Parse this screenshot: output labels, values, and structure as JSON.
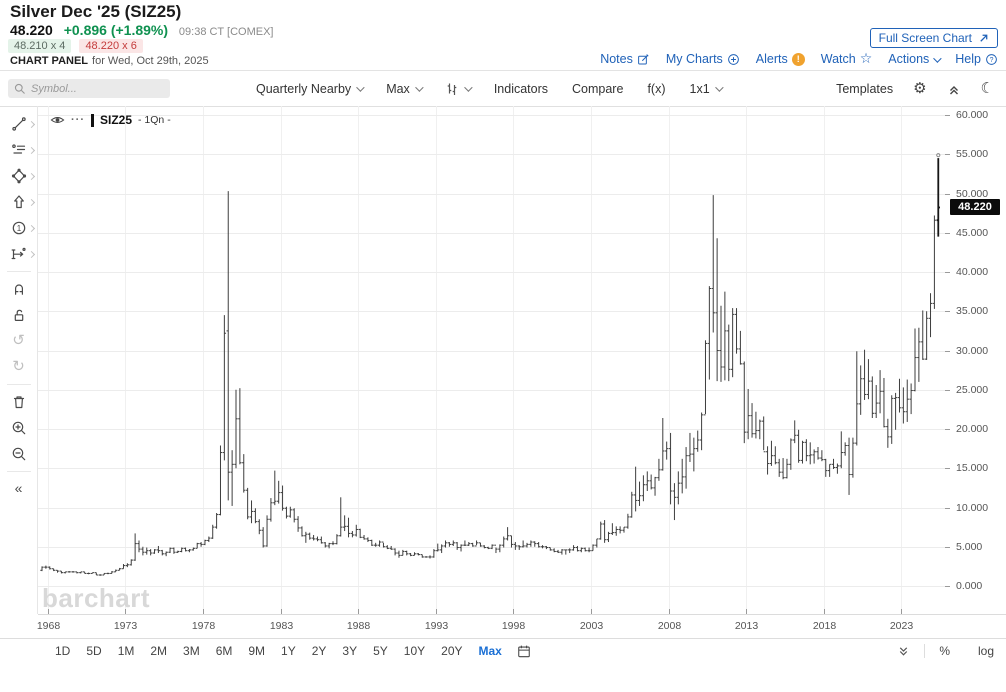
{
  "header": {
    "title": "Silver Dec '25 (SIZ25)",
    "last_price": "48.220",
    "change": "+0.896 (+1.89%)",
    "quote_time": "09:38 CT [COMEX]",
    "bid": "48.210 x 4",
    "ask": "48.220 x 6",
    "panel_label": "CHART PANEL",
    "panel_date": "for Wed, Oct 29th, 2025",
    "full_screen_button": "Full Screen Chart",
    "links": [
      {
        "label": "Notes",
        "icon": "compose-icon"
      },
      {
        "label": "My Charts",
        "icon": "plus-circle-icon"
      },
      {
        "label": "Alerts",
        "icon": "alert-badge-icon"
      },
      {
        "label": "Watch",
        "icon": "star-icon"
      },
      {
        "label": "Actions",
        "icon": "caret-down-icon"
      },
      {
        "label": "Help",
        "icon": "help-circle-icon"
      }
    ]
  },
  "toolbar": {
    "symbol_placeholder": "Symbol...",
    "frequency": "Quarterly Nearby",
    "range": "Max",
    "chart_type_icon": "ohlc-bar-type-icon",
    "indicators": "Indicators",
    "compare": "Compare",
    "fx": "f(x)",
    "grid_layout": "1x1",
    "templates": "Templates"
  },
  "side_tools": [
    {
      "name": "trendline-tool",
      "expand": true
    },
    {
      "name": "annotation-tool",
      "expand": true
    },
    {
      "name": "shapes-tool",
      "expand": true
    },
    {
      "name": "arrow-tool",
      "expand": true
    },
    {
      "name": "number-annotation-tool",
      "expand": true
    },
    {
      "name": "measure-tool",
      "expand": true
    },
    {
      "name": "separator"
    },
    {
      "name": "magnet-tool"
    },
    {
      "name": "lock-tool"
    },
    {
      "name": "undo-button",
      "dim": true
    },
    {
      "name": "redo-button",
      "dim": true
    },
    {
      "name": "separator"
    },
    {
      "name": "delete-drawings-button"
    },
    {
      "name": "zoom-in-button"
    },
    {
      "name": "zoom-out-button"
    },
    {
      "name": "separator"
    },
    {
      "name": "collapse-sidebar-button"
    }
  ],
  "chart": {
    "legend_symbol": "SIZ25",
    "legend_frequency": "- 1Qn -",
    "watermark": "barchart",
    "price_badge": "48.220",
    "badge_value": 48.22,
    "colors": {
      "bar": "#3d3d3d",
      "last_bar": "#161616",
      "grid": "#ececec",
      "axis_text": "#555555",
      "badge_bg": "#0b0b0b",
      "link_blue": "#2062b8",
      "change_green": "#0f9150",
      "ask_red": "#c43b3b",
      "alert_orange": "#f0a22e",
      "active_blue": "#1a6fd4"
    }
  },
  "chart_data": {
    "type": "ohlc-bar",
    "title": "Silver Dec '25 (SIZ25) - Quarterly Nearby - Max range",
    "frequency": "quarterly",
    "x_start_year": 1968,
    "x_ticks": [
      1968,
      1973,
      1978,
      1983,
      1988,
      1993,
      1998,
      2003,
      2008,
      2013,
      2018,
      2023
    ],
    "y_tick_labels": [
      "0.000",
      "5.000",
      "10.000",
      "15.000",
      "20.000",
      "25.000",
      "30.000",
      "35.000",
      "40.000",
      "45.000",
      "50.000",
      "55.000",
      "60.000"
    ],
    "ylim": [
      0,
      61.1
    ],
    "grid": true,
    "legend_position": "top-left",
    "last_close": 48.22,
    "quarters": [
      [
        2.5,
        1.9,
        2.0,
        2.4
      ],
      [
        2.6,
        2.2,
        2.4,
        2.4
      ],
      [
        2.5,
        2.1,
        2.4,
        2.2
      ],
      [
        2.2,
        1.9,
        2.2,
        2.0
      ],
      [
        2.0,
        1.7,
        2.0,
        1.9
      ],
      [
        1.9,
        1.6,
        1.9,
        1.7
      ],
      [
        1.8,
        1.6,
        1.7,
        1.8
      ],
      [
        1.9,
        1.7,
        1.8,
        1.8
      ],
      [
        1.9,
        1.7,
        1.8,
        1.8
      ],
      [
        1.8,
        1.6,
        1.8,
        1.7
      ],
      [
        1.8,
        1.6,
        1.7,
        1.8
      ],
      [
        1.8,
        1.6,
        1.8,
        1.6
      ],
      [
        1.7,
        1.5,
        1.6,
        1.6
      ],
      [
        1.7,
        1.6,
        1.6,
        1.7
      ],
      [
        1.7,
        1.4,
        1.7,
        1.4
      ],
      [
        1.5,
        1.3,
        1.4,
        1.4
      ],
      [
        1.6,
        1.4,
        1.4,
        1.6
      ],
      [
        1.7,
        1.5,
        1.6,
        1.6
      ],
      [
        1.9,
        1.6,
        1.6,
        1.8
      ],
      [
        2.1,
        1.8,
        1.8,
        2.0
      ],
      [
        2.3,
        2.0,
        2.0,
        2.2
      ],
      [
        2.8,
        2.2,
        2.2,
        2.6
      ],
      [
        2.9,
        2.4,
        2.6,
        2.7
      ],
      [
        3.4,
        2.6,
        2.7,
        3.3
      ],
      [
        6.7,
        3.2,
        3.3,
        5.4
      ],
      [
        5.8,
        4.3,
        5.4,
        4.7
      ],
      [
        5.0,
        3.9,
        4.7,
        4.3
      ],
      [
        4.9,
        4.0,
        4.3,
        4.5
      ],
      [
        4.7,
        3.9,
        4.5,
        4.2
      ],
      [
        4.7,
        4.1,
        4.2,
        4.6
      ],
      [
        5.1,
        4.2,
        4.6,
        4.5
      ],
      [
        4.6,
        3.9,
        4.5,
        4.1
      ],
      [
        4.4,
        3.8,
        4.1,
        4.3
      ],
      [
        4.9,
        4.2,
        4.3,
        4.8
      ],
      [
        4.9,
        4.1,
        4.8,
        4.3
      ],
      [
        4.5,
        4.2,
        4.3,
        4.4
      ],
      [
        4.9,
        4.3,
        4.4,
        4.8
      ],
      [
        4.9,
        4.4,
        4.8,
        4.5
      ],
      [
        4.7,
        4.3,
        4.5,
        4.6
      ],
      [
        4.9,
        4.5,
        4.6,
        4.8
      ],
      [
        5.5,
        4.8,
        4.8,
        5.4
      ],
      [
        5.6,
        5.0,
        5.4,
        5.3
      ],
      [
        5.9,
        5.2,
        5.3,
        5.8
      ],
      [
        6.3,
        5.6,
        5.8,
        6.1
      ],
      [
        7.8,
        6.0,
        6.1,
        7.5
      ],
      [
        9.3,
        7.3,
        7.5,
        9.1
      ],
      [
        17.9,
        9.0,
        9.1,
        17.0
      ],
      [
        34.5,
        16.0,
        17.0,
        32.2
      ],
      [
        50.3,
        10.9,
        32.5,
        14.5
      ],
      [
        17.3,
        10.2,
        14.5,
        15.5
      ],
      [
        25.0,
        15.0,
        15.5,
        21.3
      ],
      [
        25.2,
        15.5,
        21.3,
        15.7
      ],
      [
        16.8,
        11.9,
        15.7,
        12.2
      ],
      [
        12.5,
        8.5,
        12.2,
        8.8
      ],
      [
        10.9,
        8.0,
        8.8,
        9.5
      ],
      [
        9.9,
        8.0,
        9.5,
        8.2
      ],
      [
        8.5,
        6.6,
        8.2,
        7.1
      ],
      [
        7.5,
        4.9,
        7.1,
        5.1
      ],
      [
        9.0,
        5.0,
        5.1,
        8.5
      ],
      [
        11.2,
        8.2,
        8.5,
        10.6
      ],
      [
        14.7,
        10.3,
        10.6,
        10.8
      ],
      [
        13.4,
        10.5,
        10.8,
        11.9
      ],
      [
        12.8,
        9.6,
        11.9,
        9.9
      ],
      [
        10.1,
        8.6,
        9.9,
        8.9
      ],
      [
        10.1,
        8.7,
        8.9,
        9.7
      ],
      [
        9.9,
        8.1,
        9.7,
        8.5
      ],
      [
        8.9,
        6.9,
        8.5,
        7.4
      ],
      [
        7.6,
        6.3,
        7.4,
        6.4
      ],
      [
        6.9,
        5.5,
        6.4,
        6.6
      ],
      [
        6.8,
        5.9,
        6.6,
        6.1
      ],
      [
        6.5,
        5.8,
        6.1,
        6.0
      ],
      [
        6.3,
        5.7,
        6.0,
        5.9
      ],
      [
        6.3,
        5.4,
        5.9,
        5.5
      ],
      [
        5.6,
        4.9,
        5.5,
        5.1
      ],
      [
        5.5,
        4.8,
        5.1,
        5.4
      ],
      [
        5.7,
        5.2,
        5.4,
        5.4
      ],
      [
        6.6,
        5.3,
        5.4,
        6.4
      ],
      [
        11.3,
        6.3,
        6.4,
        7.5
      ],
      [
        9.0,
        7.0,
        7.5,
        7.6
      ],
      [
        8.7,
        6.2,
        7.6,
        6.7
      ],
      [
        7.0,
        6.2,
        6.7,
        6.5
      ],
      [
        7.8,
        6.3,
        6.5,
        7.2
      ],
      [
        7.3,
        6.1,
        7.2,
        6.2
      ],
      [
        6.5,
        5.9,
        6.2,
        6.0
      ],
      [
        6.2,
        5.6,
        6.0,
        5.8
      ],
      [
        5.9,
        5.1,
        5.8,
        5.2
      ],
      [
        5.5,
        5.0,
        5.2,
        5.2
      ],
      [
        5.8,
        5.0,
        5.2,
        5.6
      ],
      [
        5.5,
        4.9,
        5.6,
        5.0
      ],
      [
        5.2,
        4.7,
        5.0,
        4.8
      ],
      [
        5.1,
        4.6,
        4.8,
        4.7
      ],
      [
        4.8,
        3.9,
        4.7,
        4.2
      ],
      [
        4.5,
        3.6,
        4.2,
        3.9
      ],
      [
        4.6,
        3.9,
        3.9,
        4.4
      ],
      [
        4.5,
        3.9,
        4.4,
        4.1
      ],
      [
        4.2,
        3.8,
        4.1,
        3.9
      ],
      [
        4.3,
        3.9,
        3.9,
        4.1
      ],
      [
        4.2,
        3.9,
        4.1,
        4.0
      ],
      [
        4.0,
        3.6,
        4.0,
        3.7
      ],
      [
        3.8,
        3.6,
        3.7,
        3.7
      ],
      [
        3.9,
        3.5,
        3.7,
        3.7
      ],
      [
        4.7,
        3.6,
        3.7,
        4.5
      ],
      [
        5.4,
        4.4,
        4.5,
        4.6
      ],
      [
        5.3,
        4.2,
        4.6,
        5.1
      ],
      [
        5.8,
        4.9,
        5.1,
        5.5
      ],
      [
        5.6,
        5.0,
        5.5,
        5.3
      ],
      [
        5.8,
        5.1,
        5.3,
        5.5
      ],
      [
        5.6,
        4.6,
        5.5,
        4.9
      ],
      [
        5.3,
        4.4,
        4.9,
        5.2
      ],
      [
        5.8,
        5.1,
        5.2,
        5.2
      ],
      [
        5.6,
        5.1,
        5.2,
        5.4
      ],
      [
        5.5,
        5.0,
        5.4,
        5.1
      ],
      [
        5.8,
        5.2,
        5.1,
        5.5
      ],
      [
        5.5,
        5.0,
        5.5,
        5.1
      ],
      [
        5.2,
        4.8,
        5.1,
        4.9
      ],
      [
        5.0,
        4.7,
        4.9,
        4.8
      ],
      [
        5.3,
        4.7,
        4.8,
        5.2
      ],
      [
        4.9,
        4.2,
        5.2,
        4.7
      ],
      [
        5.3,
        4.3,
        4.7,
        5.2
      ],
      [
        6.3,
        4.9,
        5.2,
        6.0
      ],
      [
        7.5,
        5.8,
        6.0,
        6.4
      ],
      [
        6.4,
        4.9,
        6.4,
        5.3
      ],
      [
        5.6,
        4.6,
        5.3,
        5.1
      ],
      [
        5.2,
        4.6,
        5.1,
        5.0
      ],
      [
        5.8,
        4.9,
        5.0,
        5.1
      ],
      [
        5.5,
        4.9,
        5.1,
        5.3
      ],
      [
        5.8,
        5.0,
        5.3,
        5.6
      ],
      [
        5.7,
        5.0,
        5.6,
        5.4
      ],
      [
        5.6,
        4.9,
        5.4,
        5.0
      ],
      [
        5.2,
        4.8,
        5.0,
        5.0
      ],
      [
        5.1,
        4.7,
        5.0,
        4.9
      ],
      [
        4.9,
        4.5,
        4.9,
        4.6
      ],
      [
        4.8,
        4.3,
        4.6,
        4.4
      ],
      [
        4.6,
        4.2,
        4.4,
        4.3
      ],
      [
        4.7,
        4.0,
        4.3,
        4.6
      ],
      [
        4.6,
        4.0,
        4.6,
        4.6
      ],
      [
        4.8,
        4.2,
        4.6,
        4.6
      ],
      [
        5.2,
        4.5,
        4.6,
        4.9
      ],
      [
        5.1,
        4.4,
        4.9,
        4.5
      ],
      [
        4.9,
        4.3,
        4.5,
        4.8
      ],
      [
        4.9,
        4.4,
        4.8,
        4.5
      ],
      [
        4.9,
        4.3,
        4.5,
        4.5
      ],
      [
        5.3,
        4.5,
        4.5,
        5.2
      ],
      [
        6.0,
        4.9,
        5.2,
        6.0
      ],
      [
        8.2,
        5.9,
        6.0,
        7.9
      ],
      [
        8.4,
        5.5,
        7.9,
        5.9
      ],
      [
        6.9,
        5.6,
        5.9,
        6.7
      ],
      [
        8.0,
        6.5,
        6.7,
        6.8
      ],
      [
        7.6,
        6.4,
        6.8,
        7.2
      ],
      [
        7.6,
        6.7,
        7.2,
        7.1
      ],
      [
        7.5,
        6.8,
        7.1,
        7.5
      ],
      [
        9.2,
        7.3,
        7.5,
        8.8
      ],
      [
        12.0,
        8.7,
        8.8,
        11.6
      ],
      [
        15.2,
        9.5,
        11.6,
        10.9
      ],
      [
        13.3,
        10.2,
        10.9,
        11.5
      ],
      [
        14.1,
        10.8,
        11.5,
        12.9
      ],
      [
        14.6,
        12.1,
        12.9,
        13.4
      ],
      [
        14.2,
        12.3,
        13.4,
        12.5
      ],
      [
        13.9,
        11.5,
        12.5,
        13.8
      ],
      [
        16.2,
        13.4,
        13.8,
        14.8
      ],
      [
        21.4,
        14.7,
        14.8,
        17.2
      ],
      [
        18.4,
        16.1,
        17.2,
        17.5
      ],
      [
        19.5,
        10.4,
        17.5,
        12.1
      ],
      [
        13.1,
        8.4,
        12.1,
        11.3
      ],
      [
        14.6,
        10.4,
        11.3,
        13.1
      ],
      [
        16.2,
        11.8,
        13.1,
        13.9
      ],
      [
        17.7,
        12.4,
        13.9,
        16.6
      ],
      [
        19.5,
        15.8,
        16.6,
        16.8
      ],
      [
        18.9,
        14.6,
        16.8,
        17.5
      ],
      [
        19.8,
        17.1,
        17.5,
        18.6
      ],
      [
        22.1,
        17.3,
        18.6,
        21.8
      ],
      [
        31.3,
        21.9,
        21.8,
        30.9
      ],
      [
        38.2,
        26.3,
        30.9,
        37.9
      ],
      [
        49.8,
        32.3,
        37.9,
        34.8
      ],
      [
        44.3,
        26.1,
        34.8,
        30.0
      ],
      [
        35.7,
        26.0,
        30.0,
        27.9
      ],
      [
        37.5,
        26.2,
        27.9,
        32.5
      ],
      [
        33.3,
        26.1,
        32.5,
        27.6
      ],
      [
        35.4,
        26.6,
        27.6,
        34.6
      ],
      [
        35.4,
        29.6,
        34.6,
        30.2
      ],
      [
        32.5,
        28.2,
        30.2,
        28.3
      ],
      [
        28.6,
        18.2,
        28.3,
        19.6
      ],
      [
        25.1,
        18.7,
        19.6,
        21.7
      ],
      [
        23.3,
        18.9,
        21.7,
        19.4
      ],
      [
        22.2,
        18.8,
        19.4,
        19.8
      ],
      [
        21.2,
        18.7,
        19.8,
        21.0
      ],
      [
        21.6,
        17.3,
        21.0,
        17.1
      ],
      [
        17.8,
        14.2,
        17.1,
        15.6
      ],
      [
        18.5,
        15.3,
        15.6,
        16.6
      ],
      [
        17.8,
        15.5,
        16.6,
        15.7
      ],
      [
        16.2,
        13.9,
        15.7,
        14.5
      ],
      [
        16.3,
        13.6,
        14.5,
        13.8
      ],
      [
        16.2,
        13.7,
        13.8,
        15.5
      ],
      [
        18.8,
        14.8,
        15.5,
        18.6
      ],
      [
        21.1,
        18.2,
        18.6,
        19.2
      ],
      [
        19.9,
        15.7,
        19.2,
        16.0
      ],
      [
        18.5,
        15.6,
        16.0,
        18.3
      ],
      [
        18.7,
        15.9,
        18.3,
        16.6
      ],
      [
        18.3,
        15.5,
        16.6,
        16.7
      ],
      [
        17.4,
        15.6,
        16.7,
        17.1
      ],
      [
        17.7,
        16.1,
        17.1,
        16.3
      ],
      [
        17.3,
        15.9,
        16.3,
        16.1
      ],
      [
        16.2,
        13.9,
        16.1,
        14.7
      ],
      [
        15.5,
        13.9,
        14.7,
        15.5
      ],
      [
        16.2,
        14.9,
        15.5,
        15.1
      ],
      [
        15.6,
        14.3,
        15.1,
        15.3
      ],
      [
        19.7,
        15.0,
        15.3,
        17.0
      ],
      [
        18.3,
        16.6,
        17.0,
        17.9
      ],
      [
        18.9,
        11.6,
        17.9,
        14.2
      ],
      [
        18.9,
        13.8,
        14.2,
        18.2
      ],
      [
        29.9,
        17.9,
        18.2,
        23.2
      ],
      [
        28.1,
        21.8,
        23.2,
        26.4
      ],
      [
        30.1,
        23.7,
        26.4,
        24.4
      ],
      [
        28.9,
        23.8,
        24.4,
        26.1
      ],
      [
        26.7,
        21.4,
        26.1,
        22.0
      ],
      [
        25.6,
        21.4,
        22.0,
        23.3
      ],
      [
        27.5,
        22.0,
        23.3,
        24.8
      ],
      [
        26.5,
        20.2,
        24.8,
        20.3
      ],
      [
        21.3,
        17.6,
        20.3,
        19.0
      ],
      [
        24.3,
        18.1,
        19.0,
        23.9
      ],
      [
        24.6,
        19.9,
        23.9,
        24.0
      ],
      [
        26.4,
        22.1,
        24.0,
        22.7
      ],
      [
        25.3,
        20.7,
        22.7,
        22.2
      ],
      [
        26.3,
        20.9,
        22.2,
        23.8
      ],
      [
        25.8,
        21.9,
        23.8,
        24.9
      ],
      [
        32.8,
        24.8,
        24.9,
        29.1
      ],
      [
        32.9,
        26.0,
        29.1,
        31.1
      ],
      [
        35.1,
        28.8,
        31.1,
        28.9
      ],
      [
        35.0,
        28.8,
        28.9,
        34.1
      ],
      [
        37.3,
        31.7,
        34.1,
        36.0
      ],
      [
        47.2,
        35.3,
        36.0,
        46.6
      ],
      [
        54.5,
        44.5,
        46.6,
        48.22
      ]
    ]
  },
  "bottom_toolbar": {
    "ranges": [
      "1D",
      "5D",
      "1M",
      "2M",
      "3M",
      "6M",
      "9M",
      "1Y",
      "2Y",
      "3Y",
      "5Y",
      "10Y",
      "20Y",
      "Max"
    ],
    "active_range": "Max",
    "percent": "%",
    "log": "log"
  }
}
